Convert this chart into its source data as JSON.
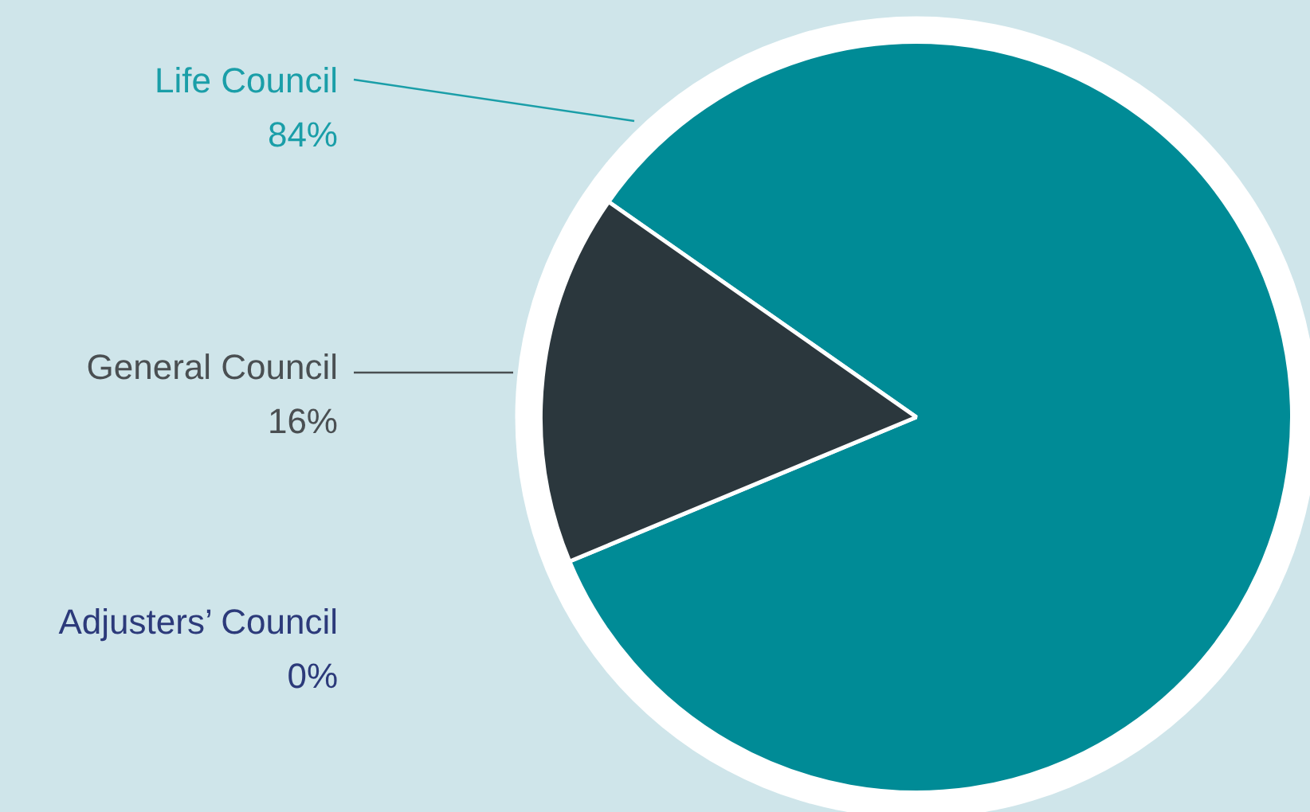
{
  "chart_data": {
    "type": "pie",
    "categories": [
      "Life Council",
      "General Council",
      "Adjusters’ Council"
    ],
    "values": [
      84,
      16,
      0
    ],
    "colors": [
      "#008b96",
      "#2b373d",
      "#2c3a7a"
    ],
    "value_labels": [
      "84%",
      "16%",
      "0%"
    ],
    "legend": false
  }
}
